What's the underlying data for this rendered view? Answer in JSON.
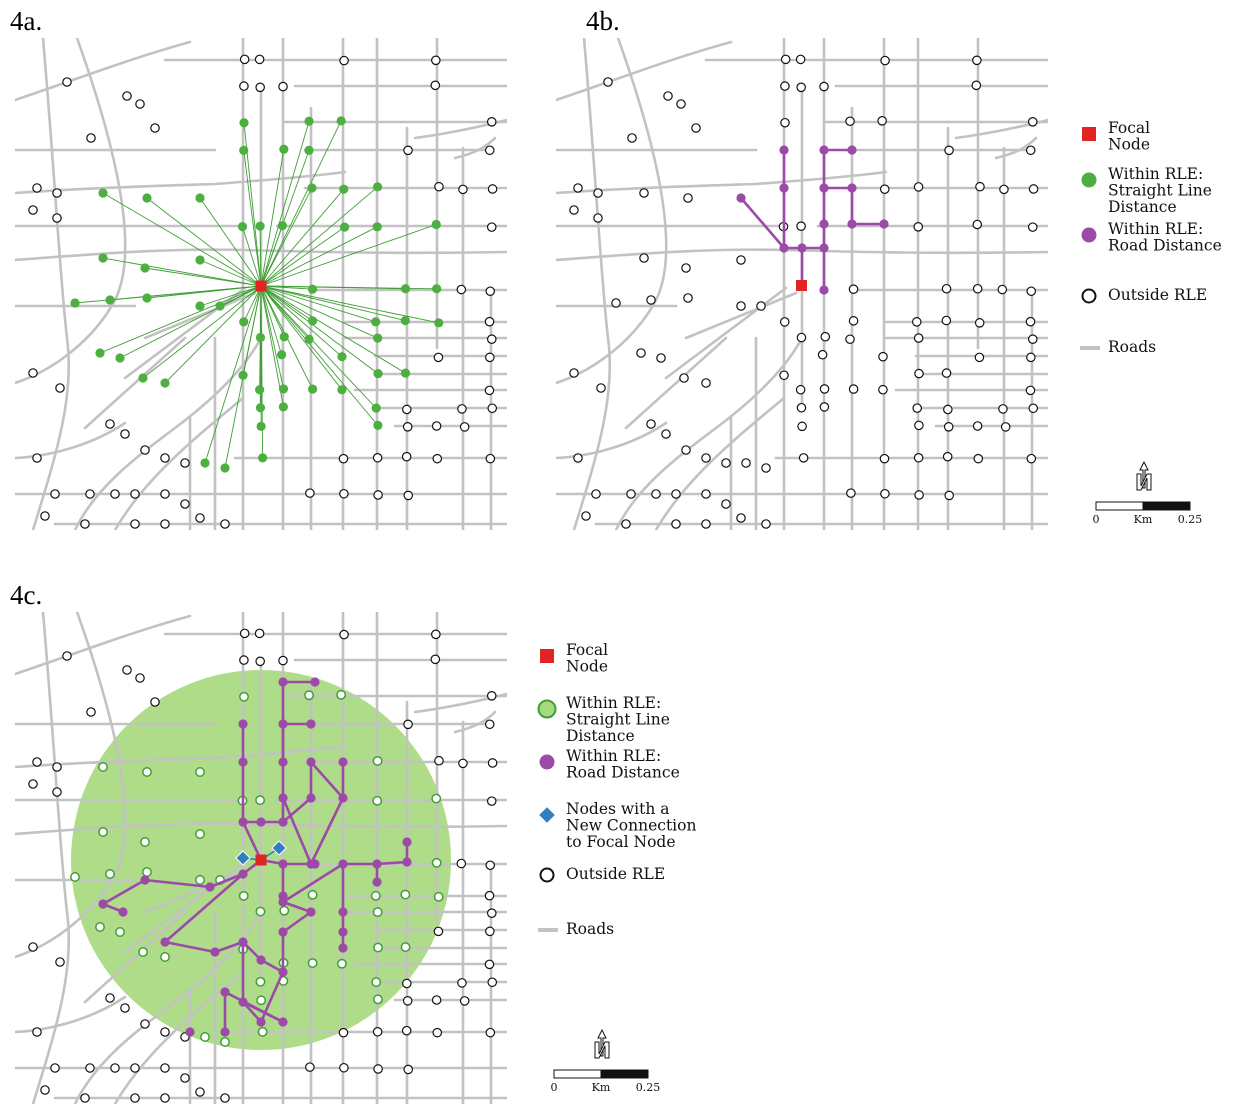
{
  "panels": [
    {
      "label": "4a.",
      "mode": "straight"
    },
    {
      "label": "4b.",
      "mode": "road"
    },
    {
      "label": "4c.",
      "mode": "combined"
    }
  ],
  "legend_ab": [
    {
      "symbol": "focal",
      "lines": [
        "Focal",
        "Node"
      ]
    },
    {
      "symbol": "green-dot",
      "lines": [
        "Within RLE:",
        " Straight Line",
        " Distance"
      ]
    },
    {
      "symbol": "purple-dot",
      "lines": [
        "Within RLE:",
        " Road Distance"
      ]
    },
    {
      "symbol": "open-circle",
      "lines": [
        "Outside RLE"
      ]
    },
    {
      "symbol": "road-line",
      "lines": [
        "Roads"
      ]
    }
  ],
  "legend_c": [
    {
      "symbol": "focal",
      "lines": [
        "Focal",
        "Node"
      ]
    },
    {
      "symbol": "green-ring",
      "lines": [
        "Within RLE:",
        " Straight Line",
        " Distance"
      ]
    },
    {
      "symbol": "purple-dot",
      "lines": [
        "Within RLE:",
        " Road Distance"
      ]
    },
    {
      "symbol": "blue-diamond",
      "lines": [
        "Nodes with a",
        " New Connection",
        " to Focal Node"
      ]
    },
    {
      "symbol": "open-circle",
      "lines": [
        "Outside RLE"
      ]
    },
    {
      "symbol": "road-line",
      "lines": [
        "Roads"
      ]
    }
  ],
  "scale_bar": {
    "start": "0",
    "unit": "Km",
    "end": "0.25"
  },
  "north_arrow": "N",
  "colors": {
    "focal": "#e02323",
    "straight_line": "#4caf3f",
    "road_distance": "#9b4aa8",
    "new_connection": "#2f7fc1",
    "rle_disc": "#a8d97f",
    "roads": "#c2c2c2"
  }
}
